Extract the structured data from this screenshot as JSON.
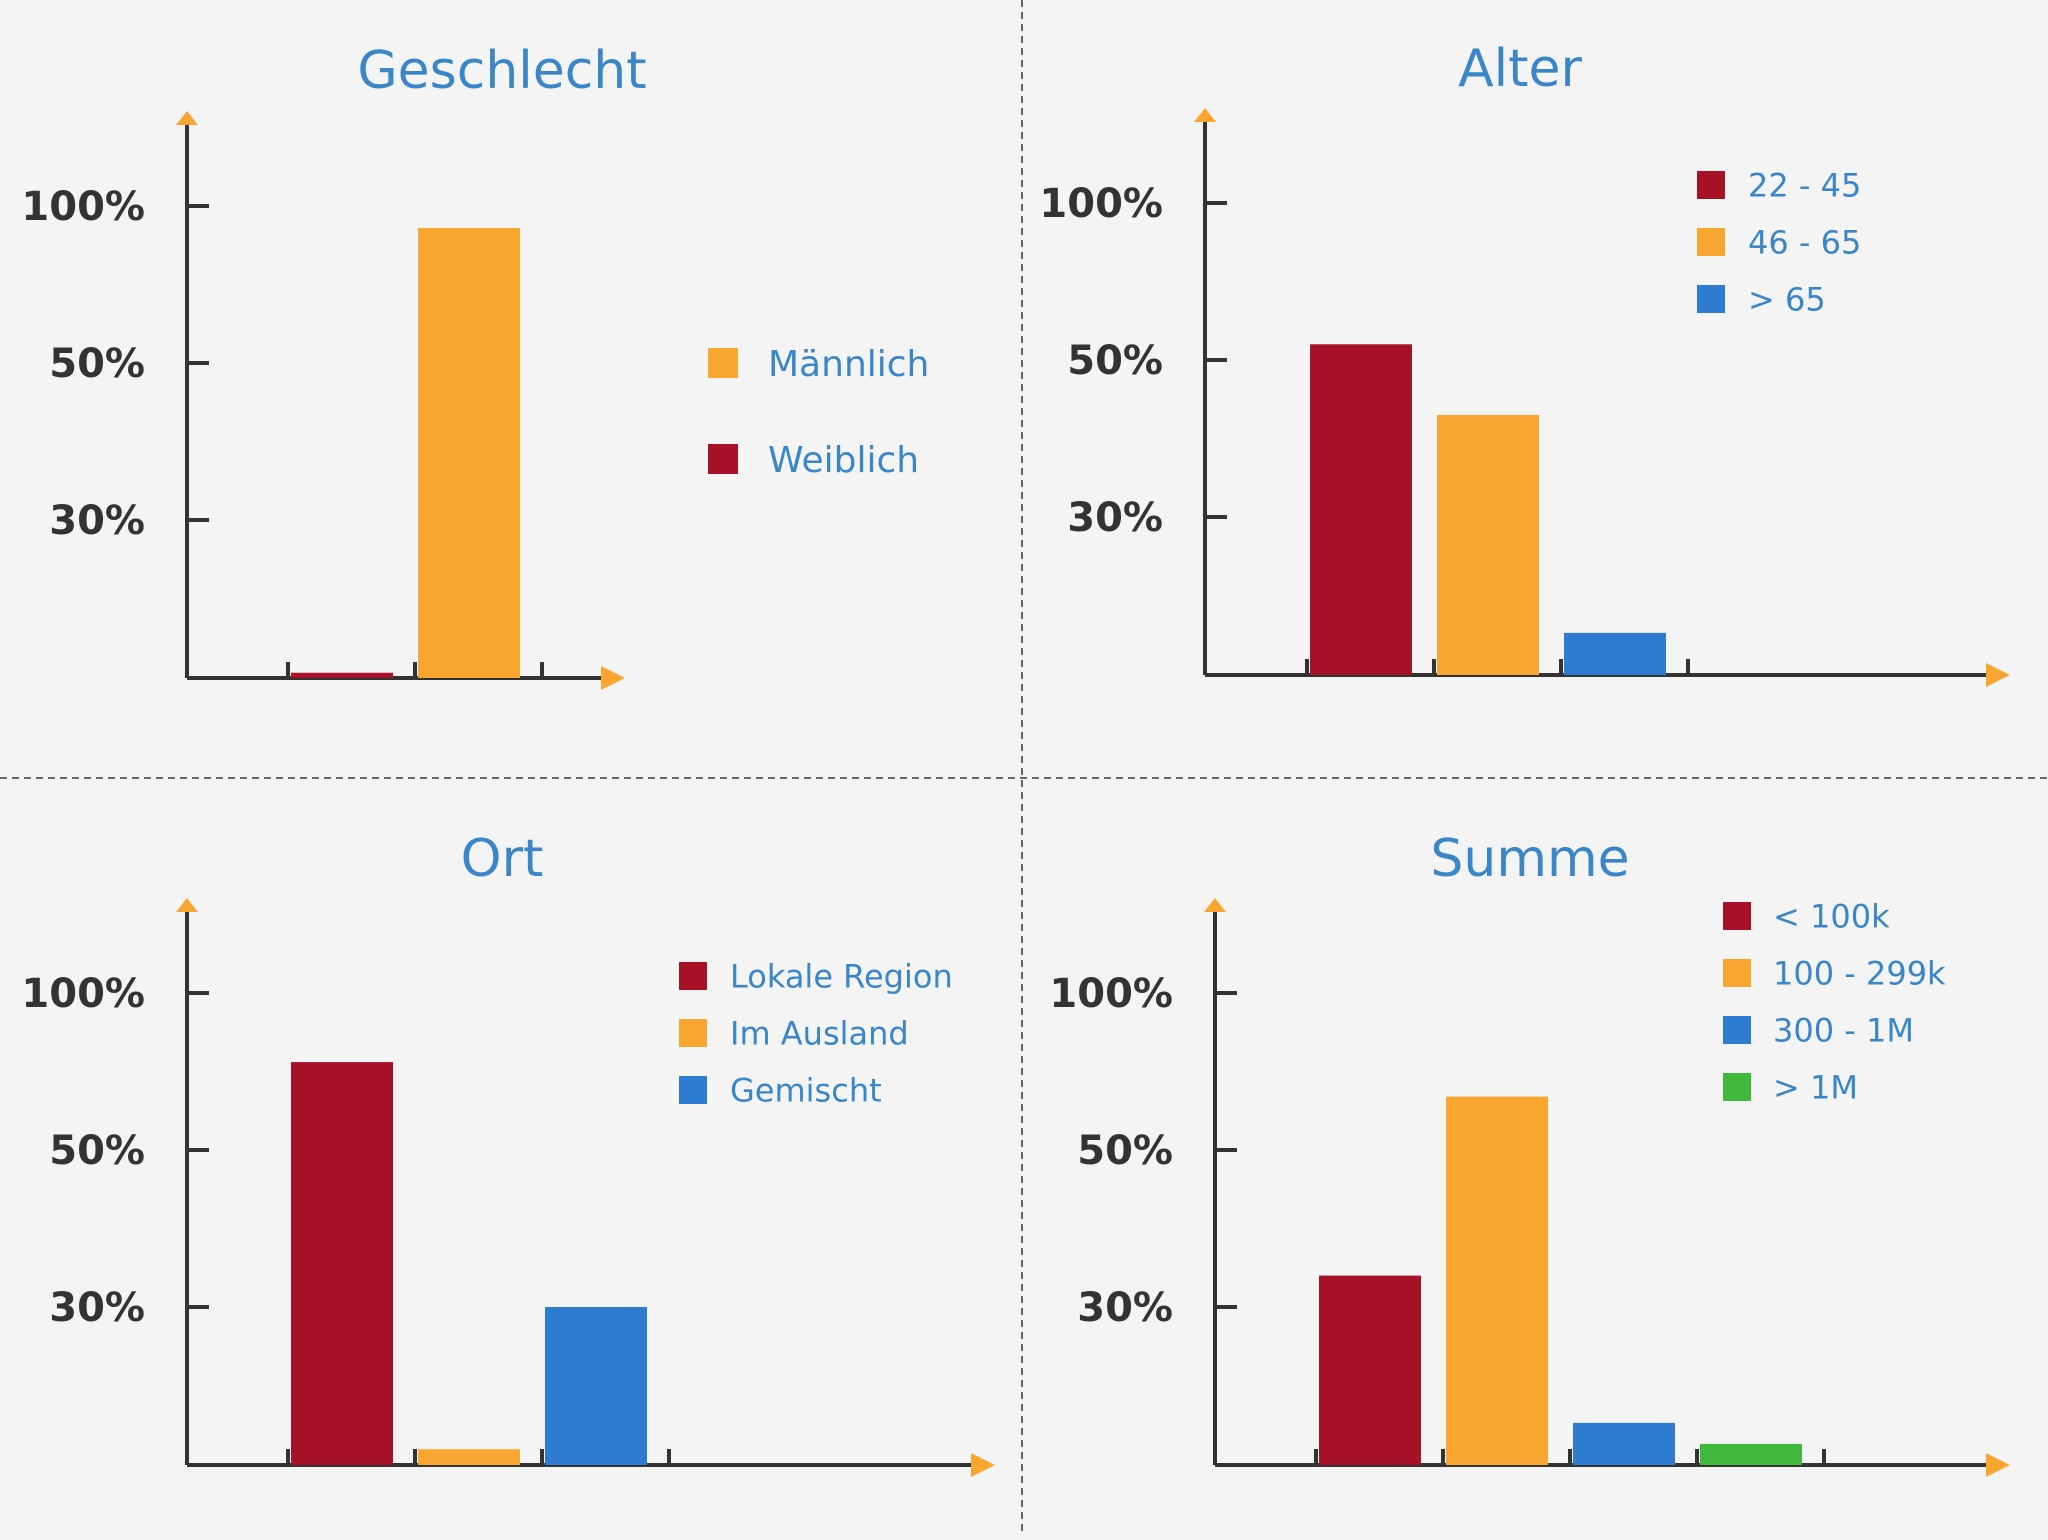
{
  "colors": {
    "red": "#a81229",
    "orange": "#f9a630",
    "blue": "#2d7cd1",
    "green": "#3fb83b",
    "axis": "#333333",
    "arrow": "#f9a630",
    "title": "#3a86c8",
    "legend_text": "#3a86c8",
    "tick_text": "#333333",
    "divider": "#666666",
    "background": "#f4f4f4"
  },
  "chart_data": [
    {
      "type": "bar",
      "title": "Geschlecht",
      "yticks": [
        "100%",
        "50%",
        "30%"
      ],
      "series": [
        {
          "name": "Weiblich",
          "color": "red",
          "value": 1
        },
        {
          "name": "Männlich",
          "color": "orange",
          "value": 93
        }
      ],
      "legend": [
        {
          "label": "Männlich",
          "color": "orange"
        },
        {
          "label": "Weiblich",
          "color": "red"
        }
      ]
    },
    {
      "type": "bar",
      "title": "Alter",
      "yticks": [
        "100%",
        "50%",
        "30%"
      ],
      "series": [
        {
          "name": "22 - 45",
          "color": "red",
          "value": 55
        },
        {
          "name": "46 - 65",
          "color": "orange",
          "value": 43
        },
        {
          "name": "> 65",
          "color": "blue",
          "value": 8
        }
      ],
      "legend": [
        {
          "label": "22 - 45",
          "color": "red"
        },
        {
          "label": "46 - 65",
          "color": "orange"
        },
        {
          "label": "> 65",
          "color": "blue"
        }
      ]
    },
    {
      "type": "bar",
      "title": "Ort",
      "yticks": [
        "100%",
        "50%",
        "30%"
      ],
      "series": [
        {
          "name": "Lokale Region",
          "color": "red",
          "value": 78
        },
        {
          "name": "Im Ausland",
          "color": "orange",
          "value": 3
        },
        {
          "name": "Gemischt",
          "color": "blue",
          "value": 30
        }
      ],
      "legend": [
        {
          "label": "Lokale Region",
          "color": "red"
        },
        {
          "label": "Im Ausland",
          "color": "orange"
        },
        {
          "label": "Gemischt",
          "color": "blue"
        }
      ]
    },
    {
      "type": "bar",
      "title": "Summe",
      "yticks": [
        "100%",
        "50%",
        "30%"
      ],
      "series": [
        {
          "name": "< 100k",
          "color": "red",
          "value": 34
        },
        {
          "name": "100 - 299k",
          "color": "orange",
          "value": 67
        },
        {
          "name": "300 - 1M",
          "color": "blue",
          "value": 8
        },
        {
          "name": "> 1M",
          "color": "green",
          "value": 4
        }
      ],
      "legend": [
        {
          "label": "< 100k",
          "color": "red"
        },
        {
          "label": "100 - 299k",
          "color": "orange"
        },
        {
          "label": "300 - 1M",
          "color": "blue"
        },
        {
          "label": "> 1M",
          "color": "green"
        }
      ]
    }
  ]
}
